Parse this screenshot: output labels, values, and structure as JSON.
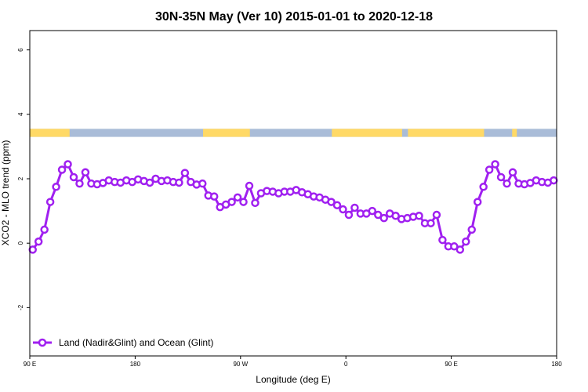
{
  "chart_data": {
    "type": "line",
    "title": "30N-35N May (Ver 10)   2015-01-01 to 2020-12-18",
    "xlabel": "Longitude (deg E)",
    "ylabel": "XCO2 - MLO trend (ppm)",
    "xlim": [
      90,
      540
    ],
    "ylim": [
      -3.5,
      6.6
    ],
    "x_ticks": [
      {
        "value": 90,
        "label": "90 E"
      },
      {
        "value": 180,
        "label": "180"
      },
      {
        "value": 270,
        "label": "90 W"
      },
      {
        "value": 360,
        "label": "0"
      },
      {
        "value": 450,
        "label": "90 E"
      },
      {
        "value": 540,
        "label": "180"
      }
    ],
    "y_ticks": [
      {
        "value": -2,
        "label": "-2"
      },
      {
        "value": 0,
        "label": "0"
      },
      {
        "value": 2,
        "label": "2"
      },
      {
        "value": 4,
        "label": "4"
      },
      {
        "value": 6,
        "label": "6"
      }
    ],
    "grid": false,
    "legend_position": "bottom-left",
    "colors": {
      "series": "#a020f0",
      "land": "#ffd966",
      "ocean": "#a9bcd8"
    },
    "land_ocean_band": {
      "y_range": [
        3.3,
        3.55
      ],
      "land_segments": [
        [
          90,
          124
        ],
        [
          238,
          278
        ],
        [
          348,
          408
        ],
        [
          413,
          478
        ],
        [
          502,
          506
        ]
      ]
    },
    "series": [
      {
        "name": "Land (Nadir&Glint) and Ocean (Glint)",
        "x": [
          92.5,
          97.5,
          102.5,
          107.5,
          112.5,
          117.5,
          122.5,
          127.5,
          132.5,
          137.5,
          142.5,
          147.5,
          152.5,
          157.5,
          162.5,
          167.5,
          172.5,
          177.5,
          182.5,
          187.5,
          192.5,
          197.5,
          202.5,
          207.5,
          212.5,
          217.5,
          222.5,
          227.5,
          232.5,
          237.5,
          242.5,
          247.5,
          252.5,
          257.5,
          262.5,
          267.5,
          272.5,
          277.5,
          282.5,
          287.5,
          292.5,
          297.5,
          302.5,
          307.5,
          312.5,
          317.5,
          322.5,
          327.5,
          332.5,
          337.5,
          342.5,
          347.5,
          352.5,
          357.5,
          362.5,
          367.5,
          372.5,
          377.5,
          382.5,
          387.5,
          392.5,
          397.5,
          402.5,
          407.5,
          412.5,
          417.5,
          422.5,
          427.5,
          432.5,
          437.5,
          442.5,
          447.5,
          452.5,
          457.5,
          462.5,
          467.5,
          472.5,
          477.5,
          482.5,
          487.5,
          492.5,
          497.5,
          502.5,
          507.5,
          512.5,
          517.5,
          522.5,
          527.5,
          532.5,
          537.5
        ],
        "y": [
          -0.2,
          0.05,
          0.42,
          1.28,
          1.75,
          2.28,
          2.45,
          2.05,
          1.85,
          2.2,
          1.85,
          1.83,
          1.87,
          1.95,
          1.9,
          1.88,
          1.95,
          1.9,
          1.98,
          1.93,
          1.88,
          2.0,
          1.93,
          1.95,
          1.9,
          1.88,
          2.18,
          1.9,
          1.82,
          1.85,
          1.48,
          1.45,
          1.12,
          1.2,
          1.28,
          1.42,
          1.28,
          1.78,
          1.25,
          1.55,
          1.62,
          1.6,
          1.55,
          1.6,
          1.6,
          1.65,
          1.58,
          1.52,
          1.45,
          1.42,
          1.35,
          1.28,
          1.18,
          1.05,
          0.88,
          1.1,
          0.92,
          0.92,
          1.0,
          0.88,
          0.78,
          0.92,
          0.85,
          0.75,
          0.78,
          0.82,
          0.85,
          0.62,
          0.62,
          0.88,
          0.1,
          -0.1,
          -0.1,
          -0.2,
          0.05,
          0.42,
          1.28,
          1.75,
          2.28,
          2.45,
          2.05,
          1.85,
          2.2,
          1.85,
          1.83,
          1.87,
          1.95,
          1.9,
          1.88,
          1.95
        ]
      }
    ]
  }
}
